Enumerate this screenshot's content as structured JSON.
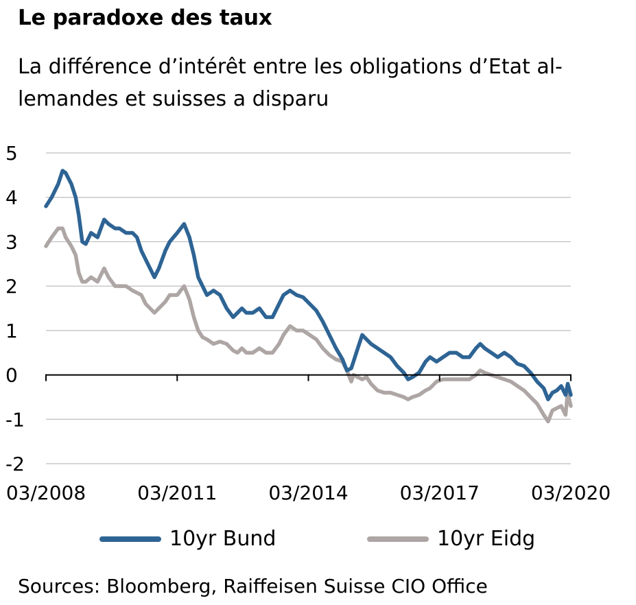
{
  "title": "Le paradoxe des taux",
  "subtitle_lines": [
    "La différence d’intérêt entre les obligations d’Etat al-",
    "lemandes et suisses a disparu"
  ],
  "source": "Sources: Bloomberg, Raiffeisen Suisse CIO Office",
  "colors": {
    "bund": "#2e6494",
    "eidg": "#ada6a5",
    "grid": "#bdbdbd",
    "axis": "#000000"
  },
  "chart_data": {
    "type": "line",
    "xlim": [
      2008.17,
      2020.17
    ],
    "ylim": [
      -2,
      5
    ],
    "yticks": [
      -2,
      -1,
      0,
      1,
      2,
      3,
      4,
      5
    ],
    "xtick_labels": [
      "03/2008",
      "03/2011",
      "03/2014",
      "03/2017",
      "03/2020"
    ],
    "xtick_values": [
      2008.17,
      2011.17,
      2014.17,
      2017.17,
      2020.17
    ],
    "grid": "horizontal",
    "legend_position": "bottom",
    "series": [
      {
        "name": "10yr Bund",
        "color": "#2e6494",
        "x": [
          2008.17,
          2008.3,
          2008.45,
          2008.55,
          2008.62,
          2008.75,
          2008.85,
          2008.92,
          2009.0,
          2009.08,
          2009.2,
          2009.35,
          2009.5,
          2009.6,
          2009.75,
          2009.85,
          2010.0,
          2010.15,
          2010.25,
          2010.35,
          2010.45,
          2010.55,
          2010.65,
          2010.75,
          2010.9,
          2011.0,
          2011.17,
          2011.25,
          2011.33,
          2011.45,
          2011.55,
          2011.65,
          2011.75,
          2011.85,
          2012.0,
          2012.15,
          2012.3,
          2012.45,
          2012.55,
          2012.65,
          2012.75,
          2012.9,
          2013.05,
          2013.2,
          2013.35,
          2013.5,
          2013.6,
          2013.75,
          2013.9,
          2014.05,
          2014.2,
          2014.35,
          2014.5,
          2014.65,
          2014.8,
          2014.95,
          2015.05,
          2015.15,
          2015.2,
          2015.3,
          2015.4,
          2015.5,
          2015.6,
          2015.75,
          2015.9,
          2016.05,
          2016.2,
          2016.35,
          2016.45,
          2016.55,
          2016.7,
          2016.85,
          2016.95,
          2017.1,
          2017.25,
          2017.4,
          2017.55,
          2017.7,
          2017.85,
          2018.0,
          2018.1,
          2018.2,
          2018.35,
          2018.5,
          2018.65,
          2018.8,
          2018.95,
          2019.1,
          2019.25,
          2019.4,
          2019.55,
          2019.65,
          2019.75,
          2019.85,
          2019.95,
          2020.05,
          2020.1,
          2020.17
        ],
        "y": [
          3.8,
          4.0,
          4.3,
          4.6,
          4.55,
          4.3,
          4.0,
          3.6,
          3.0,
          2.95,
          3.2,
          3.1,
          3.5,
          3.4,
          3.3,
          3.3,
          3.2,
          3.2,
          3.1,
          2.8,
          2.6,
          2.4,
          2.2,
          2.4,
          2.8,
          3.0,
          3.2,
          3.3,
          3.4,
          3.1,
          2.7,
          2.2,
          2.0,
          1.8,
          1.9,
          1.8,
          1.5,
          1.3,
          1.4,
          1.5,
          1.4,
          1.4,
          1.5,
          1.3,
          1.3,
          1.6,
          1.8,
          1.9,
          1.8,
          1.75,
          1.6,
          1.45,
          1.2,
          0.9,
          0.6,
          0.35,
          0.1,
          0.15,
          0.3,
          0.6,
          0.9,
          0.8,
          0.7,
          0.6,
          0.5,
          0.4,
          0.2,
          0.05,
          -0.1,
          -0.05,
          0.05,
          0.3,
          0.4,
          0.3,
          0.4,
          0.5,
          0.5,
          0.4,
          0.4,
          0.6,
          0.7,
          0.6,
          0.5,
          0.4,
          0.5,
          0.4,
          0.25,
          0.2,
          0.05,
          -0.15,
          -0.3,
          -0.55,
          -0.4,
          -0.35,
          -0.25,
          -0.45,
          -0.2,
          -0.45
        ]
      },
      {
        "name": "10yr Eidg",
        "color": "#ada6a5",
        "x": [
          2008.17,
          2008.3,
          2008.45,
          2008.55,
          2008.62,
          2008.75,
          2008.85,
          2008.92,
          2009.0,
          2009.08,
          2009.2,
          2009.35,
          2009.5,
          2009.6,
          2009.75,
          2009.85,
          2010.0,
          2010.15,
          2010.25,
          2010.35,
          2010.45,
          2010.55,
          2010.65,
          2010.75,
          2010.9,
          2011.0,
          2011.17,
          2011.25,
          2011.33,
          2011.45,
          2011.55,
          2011.65,
          2011.75,
          2011.85,
          2012.0,
          2012.15,
          2012.3,
          2012.45,
          2012.55,
          2012.65,
          2012.75,
          2012.9,
          2013.05,
          2013.2,
          2013.35,
          2013.5,
          2013.6,
          2013.75,
          2013.9,
          2014.05,
          2014.2,
          2014.35,
          2014.5,
          2014.65,
          2014.8,
          2014.95,
          2015.05,
          2015.15,
          2015.2,
          2015.3,
          2015.4,
          2015.5,
          2015.6,
          2015.75,
          2015.9,
          2016.05,
          2016.2,
          2016.35,
          2016.45,
          2016.55,
          2016.7,
          2016.85,
          2016.95,
          2017.1,
          2017.25,
          2017.4,
          2017.55,
          2017.7,
          2017.85,
          2018.0,
          2018.1,
          2018.2,
          2018.35,
          2018.5,
          2018.65,
          2018.8,
          2018.95,
          2019.1,
          2019.25,
          2019.4,
          2019.55,
          2019.65,
          2019.75,
          2019.85,
          2019.95,
          2020.05,
          2020.1,
          2020.17
        ],
        "y": [
          2.9,
          3.1,
          3.3,
          3.3,
          3.1,
          2.9,
          2.7,
          2.3,
          2.1,
          2.1,
          2.2,
          2.1,
          2.4,
          2.2,
          2.0,
          2.0,
          2.0,
          1.9,
          1.85,
          1.8,
          1.6,
          1.5,
          1.4,
          1.5,
          1.65,
          1.8,
          1.8,
          1.9,
          2.0,
          1.7,
          1.3,
          1.0,
          0.85,
          0.8,
          0.7,
          0.75,
          0.7,
          0.55,
          0.5,
          0.6,
          0.5,
          0.5,
          0.6,
          0.5,
          0.5,
          0.7,
          0.9,
          1.1,
          1.0,
          1.0,
          0.9,
          0.8,
          0.6,
          0.45,
          0.35,
          0.3,
          0.1,
          -0.15,
          0.0,
          -0.05,
          -0.1,
          -0.05,
          -0.2,
          -0.35,
          -0.4,
          -0.4,
          -0.45,
          -0.5,
          -0.55,
          -0.5,
          -0.45,
          -0.35,
          -0.3,
          -0.15,
          -0.1,
          -0.1,
          -0.1,
          -0.1,
          -0.1,
          0.0,
          0.1,
          0.05,
          0.0,
          -0.05,
          -0.1,
          -0.15,
          -0.25,
          -0.35,
          -0.5,
          -0.65,
          -0.9,
          -1.05,
          -0.8,
          -0.75,
          -0.7,
          -0.9,
          -0.4,
          -0.7
        ]
      }
    ]
  }
}
